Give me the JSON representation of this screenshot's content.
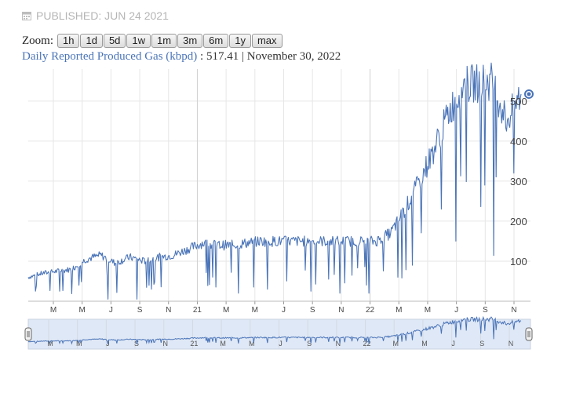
{
  "header": {
    "published": "PUBLISHED: JUN 24 2021",
    "zoom_label": "Zoom:",
    "zoom_buttons": [
      "1h",
      "1d",
      "5d",
      "1w",
      "1m",
      "3m",
      "6m",
      "1y",
      "max"
    ]
  },
  "legend": {
    "series_name": "Daily Reported Produced Gas (kbpd)",
    "separator": " : ",
    "value": "517.41",
    "divider": " | ",
    "date": "November 30, 2022"
  },
  "colors": {
    "line": "#4a74b8",
    "grid": "#e6e6e6",
    "navigator_fill": "#dfe8f6"
  },
  "chart_data": {
    "type": "line",
    "series": [
      {
        "name": "Daily Reported Produced Gas (kbpd)"
      }
    ],
    "y_ticks": [
      100,
      200,
      300,
      400,
      500
    ],
    "ylim": [
      0,
      580
    ],
    "x_ticks": [
      "M",
      "M",
      "J",
      "S",
      "N",
      "21",
      "M",
      "M",
      "J",
      "S",
      "N",
      "22",
      "M",
      "M",
      "J",
      "S",
      "N"
    ],
    "navigator_ticks": [
      "M",
      "M",
      "J",
      "S",
      "N",
      "21",
      "M",
      "M",
      "J",
      "S",
      "N",
      "22",
      "M",
      "M",
      "J",
      "S",
      "N"
    ],
    "last_point": {
      "date": "November 30, 2022",
      "value": 517.41
    },
    "x": [
      "2020-01",
      "2020-02",
      "2020-03",
      "2020-04",
      "2020-05",
      "2020-06",
      "2020-07",
      "2020-08",
      "2020-09",
      "2020-10",
      "2020-11",
      "2020-12",
      "2021-01",
      "2021-02",
      "2021-03",
      "2021-04",
      "2021-05",
      "2021-06",
      "2021-07",
      "2021-08",
      "2021-09",
      "2021-10",
      "2021-11",
      "2021-12",
      "2022-01",
      "2022-02",
      "2022-03",
      "2022-04",
      "2022-05",
      "2022-06",
      "2022-07",
      "2022-08",
      "2022-09",
      "2022-10",
      "2022-11"
    ],
    "values": [
      60,
      70,
      75,
      80,
      105,
      115,
      95,
      110,
      100,
      110,
      115,
      130,
      145,
      140,
      140,
      145,
      150,
      150,
      150,
      150,
      150,
      150,
      150,
      150,
      150,
      170,
      230,
      300,
      380,
      470,
      540,
      545,
      550,
      450,
      517.41
    ],
    "dips": [
      {
        "x": "2020-01",
        "value": 25
      },
      {
        "x": "2020-04",
        "value": 40
      },
      {
        "x": "2020-06",
        "value": 5
      },
      {
        "x": "2020-08",
        "value": 5
      },
      {
        "x": "2020-09",
        "value": 30
      },
      {
        "x": "2021-03",
        "value": 20
      },
      {
        "x": "2021-05",
        "value": 30
      },
      {
        "x": "2021-08",
        "value": 25
      },
      {
        "x": "2021-10",
        "value": 20
      },
      {
        "x": "2021-12",
        "value": 20
      },
      {
        "x": "2022-02",
        "value": 60
      },
      {
        "x": "2022-03",
        "value": 90
      },
      {
        "x": "2022-05",
        "value": 230
      },
      {
        "x": "2022-06",
        "value": 150
      },
      {
        "x": "2022-08",
        "value": 290
      },
      {
        "x": "2022-10",
        "value": 320
      }
    ]
  }
}
